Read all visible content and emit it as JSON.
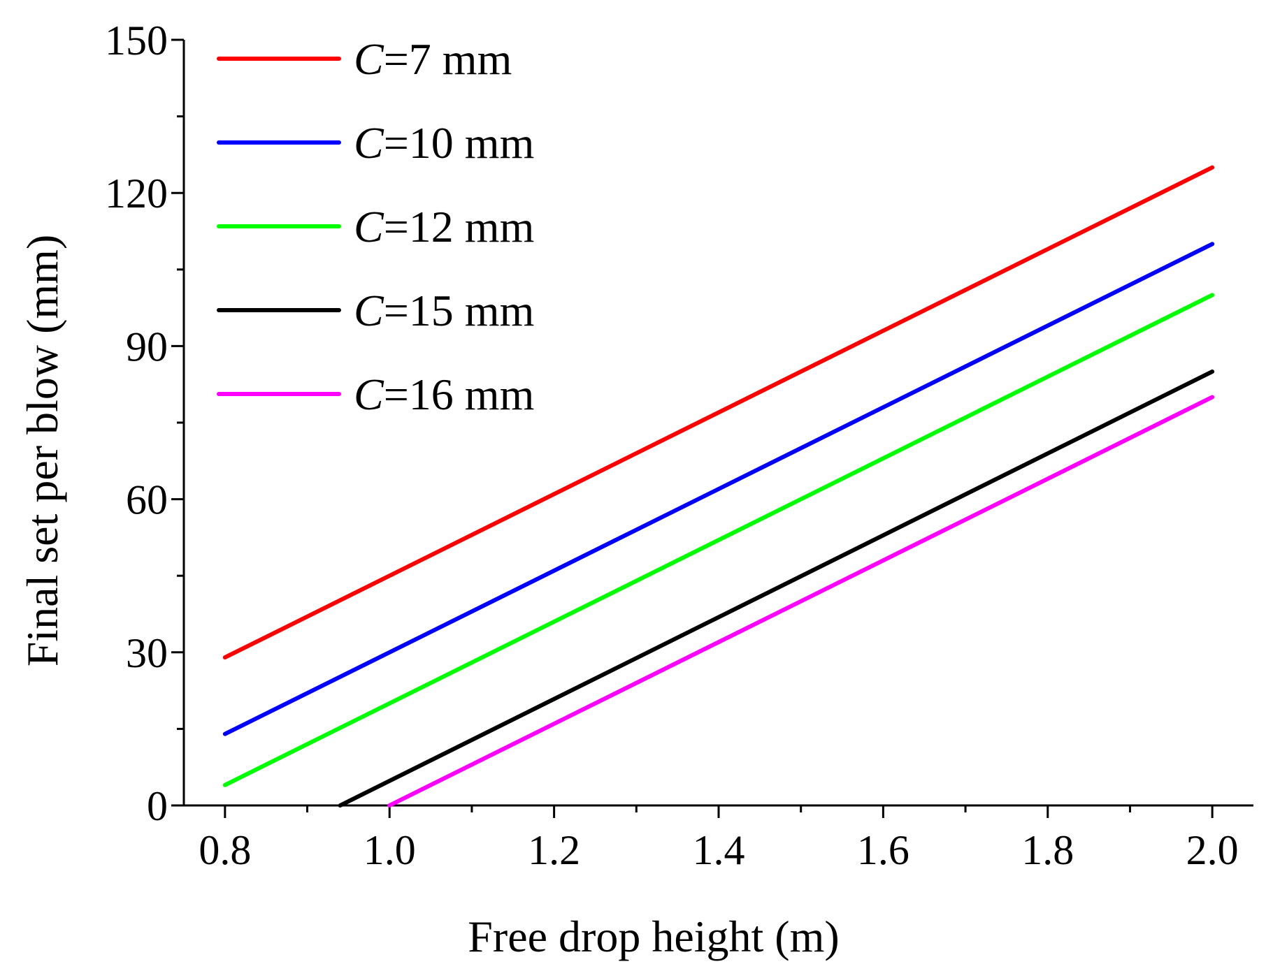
{
  "chart_data": {
    "type": "line",
    "title": "",
    "xlabel": "Free drop height (m)",
    "ylabel": "Final set per blow (mm)",
    "xlim": [
      0.75,
      2.05
    ],
    "ylim": [
      0,
      150
    ],
    "xticks": [
      0.8,
      1.0,
      1.2,
      1.4,
      1.6,
      1.8,
      2.0
    ],
    "xtick_labels": [
      "0.8",
      "1.0",
      "1.2",
      "1.4",
      "1.6",
      "1.8",
      "2.0"
    ],
    "yticks": [
      0,
      30,
      60,
      90,
      120,
      150
    ],
    "ytick_labels": [
      "0",
      "30",
      "60",
      "90",
      "120",
      "150"
    ],
    "grid": false,
    "legend_position": "top-left",
    "series": [
      {
        "name": "C=7 mm",
        "prefix": "C",
        "suffix": "=7 mm",
        "color": "#ff0000",
        "x": [
          0.8,
          2.0
        ],
        "y": [
          29,
          125
        ]
      },
      {
        "name": "C=10 mm",
        "prefix": "C",
        "suffix": "=10 mm",
        "color": "#0000ff",
        "x": [
          0.8,
          2.0
        ],
        "y": [
          14,
          110
        ]
      },
      {
        "name": "C=12 mm",
        "prefix": "C",
        "suffix": "=12 mm",
        "color": "#00ff00",
        "x": [
          0.8,
          2.0
        ],
        "y": [
          4,
          100
        ]
      },
      {
        "name": "C=15 mm",
        "prefix": "C",
        "suffix": "=15 mm",
        "color": "#000000",
        "x": [
          0.94,
          2.0
        ],
        "y": [
          0,
          85
        ]
      },
      {
        "name": "C=16 mm",
        "prefix": "C",
        "suffix": "=16 mm",
        "color": "#ff00ff",
        "x": [
          1.0,
          2.0
        ],
        "y": [
          0,
          80
        ]
      }
    ]
  }
}
